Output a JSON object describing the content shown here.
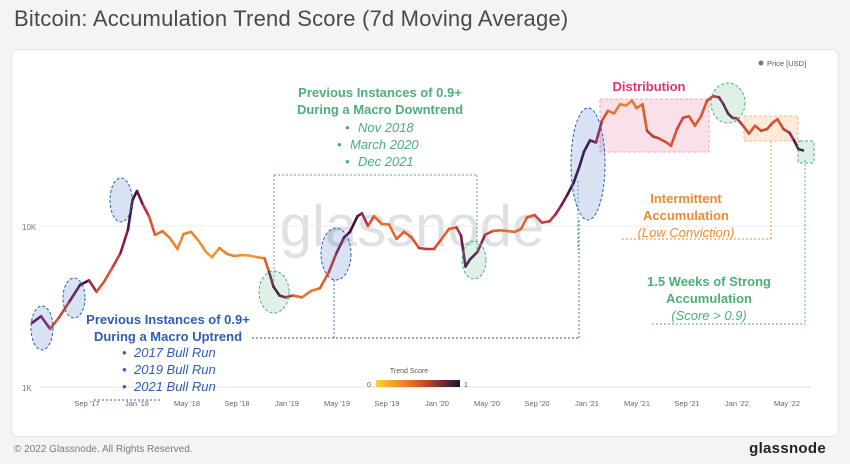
{
  "title": "Bitcoin: Accumulation Trend Score (7d Moving Average)",
  "footer": {
    "copyright": "© 2022 Glassnode. All Rights Reserved.",
    "brand": "glassnode"
  },
  "watermark": "glassnode",
  "legend": {
    "price_label": "Price [USD]",
    "scale_title": "Trend Score",
    "scale_min": "0",
    "scale_max": "1"
  },
  "colors": {
    "green": "#4caf79",
    "blue": "#2f5db6",
    "pink": "#e0366e",
    "orange": "#f08a32",
    "score_low": "#f7d23a",
    "score_mid": "#e05a2a",
    "score_high": "#1e0f3a"
  },
  "annotations": {
    "downtrend_heading": [
      "Previous Instances of 0.9+",
      "During a Macro Downtrend"
    ],
    "downtrend_items": [
      "Nov 2018",
      "March 2020",
      "Dec 2021"
    ],
    "uptrend_heading": [
      "Previous Instances of 0.9+",
      "During a Macro Uptrend"
    ],
    "uptrend_items": [
      "2017 Bull Run",
      "2019 Bull Run",
      "2021 Bull Run"
    ],
    "distribution": "Distribution",
    "intermittent": [
      "Intermittent",
      "Accumulation"
    ],
    "intermittent_sub": "(Low Conviction)",
    "strong": [
      "1.5 Weeks of Strong",
      "Accumulation"
    ],
    "strong_sub": "(Score > 0.9)"
  },
  "chart_data": {
    "type": "line",
    "title": "Bitcoin: Accumulation Trend Score (7d Moving Average)",
    "y_scale": "log",
    "y_ticks": [
      {
        "value": 1000,
        "label": "1K"
      },
      {
        "value": 10000,
        "label": "10K"
      }
    ],
    "x_ticks": [
      "Sep '17",
      "Jan '18",
      "May '18",
      "Sep '18",
      "Jan '19",
      "May '19",
      "Sep '19",
      "Jan '20",
      "May '20",
      "Sep '20",
      "Jan '21",
      "May '21",
      "Sep '21",
      "Jan '22",
      "May '22"
    ],
    "x_start": 2017.3,
    "x_end": 2022.5,
    "series": [
      {
        "name": "Price [USD]",
        "color_by": "Trend Score",
        "points": [
          [
            2017.3,
            2500,
            0.8
          ],
          [
            2017.36,
            2750,
            0.95
          ],
          [
            2017.42,
            2300,
            0.55
          ],
          [
            2017.48,
            2700,
            0.5
          ],
          [
            2017.55,
            3400,
            0.7
          ],
          [
            2017.62,
            4300,
            0.95
          ],
          [
            2017.68,
            4600,
            0.9
          ],
          [
            2017.73,
            3900,
            0.55
          ],
          [
            2017.78,
            4500,
            0.5
          ],
          [
            2017.84,
            5600,
            0.55
          ],
          [
            2017.89,
            6800,
            0.7
          ],
          [
            2017.94,
            9500,
            0.9
          ],
          [
            2017.97,
            14500,
            0.95
          ],
          [
            2018.0,
            16500,
            0.95
          ],
          [
            2018.04,
            13500,
            0.75
          ],
          [
            2018.08,
            11500,
            0.6
          ],
          [
            2018.12,
            8800,
            0.45
          ],
          [
            2018.17,
            9300,
            0.4
          ],
          [
            2018.22,
            8400,
            0.35
          ],
          [
            2018.27,
            7200,
            0.3
          ],
          [
            2018.31,
            8900,
            0.3
          ],
          [
            2018.36,
            9200,
            0.35
          ],
          [
            2018.41,
            8100,
            0.3
          ],
          [
            2018.46,
            6900,
            0.25
          ],
          [
            2018.5,
            6400,
            0.2
          ],
          [
            2018.55,
            7300,
            0.3
          ],
          [
            2018.6,
            6700,
            0.35
          ],
          [
            2018.65,
            6500,
            0.3
          ],
          [
            2018.7,
            6600,
            0.25
          ],
          [
            2018.75,
            6550,
            0.2
          ],
          [
            2018.8,
            6400,
            0.25
          ],
          [
            2018.85,
            6300,
            0.3
          ],
          [
            2018.88,
            5200,
            0.7
          ],
          [
            2018.91,
            4200,
            0.95
          ],
          [
            2018.95,
            3700,
            0.95
          ],
          [
            2018.99,
            3600,
            0.85
          ],
          [
            2019.04,
            3700,
            0.55
          ],
          [
            2019.1,
            3600,
            0.4
          ],
          [
            2019.16,
            3950,
            0.35
          ],
          [
            2019.22,
            4100,
            0.4
          ],
          [
            2019.28,
            5200,
            0.55
          ],
          [
            2019.33,
            6800,
            0.7
          ],
          [
            2019.38,
            8500,
            0.85
          ],
          [
            2019.42,
            9200,
            0.95
          ],
          [
            2019.47,
            11500,
            0.95
          ],
          [
            2019.5,
            12000,
            0.8
          ],
          [
            2019.54,
            10000,
            0.6
          ],
          [
            2019.58,
            11500,
            0.5
          ],
          [
            2019.63,
            10300,
            0.4
          ],
          [
            2019.68,
            10200,
            0.4
          ],
          [
            2019.73,
            8300,
            0.45
          ],
          [
            2019.78,
            9200,
            0.5
          ],
          [
            2019.83,
            8500,
            0.45
          ],
          [
            2019.88,
            7300,
            0.6
          ],
          [
            2019.93,
            7200,
            0.7
          ],
          [
            2019.98,
            7200,
            0.6
          ],
          [
            2020.03,
            8300,
            0.5
          ],
          [
            2020.08,
            9600,
            0.45
          ],
          [
            2020.13,
            9800,
            0.55
          ],
          [
            2020.16,
            8700,
            0.75
          ],
          [
            2020.19,
            5600,
            0.95
          ],
          [
            2020.22,
            6200,
            0.95
          ],
          [
            2020.27,
            6900,
            0.85
          ],
          [
            2020.32,
            8800,
            0.7
          ],
          [
            2020.37,
            9300,
            0.55
          ],
          [
            2020.42,
            9400,
            0.45
          ],
          [
            2020.47,
            9300,
            0.4
          ],
          [
            2020.52,
            9200,
            0.4
          ],
          [
            2020.56,
            9600,
            0.45
          ],
          [
            2020.6,
            11300,
            0.5
          ],
          [
            2020.65,
            11700,
            0.55
          ],
          [
            2020.7,
            10500,
            0.6
          ],
          [
            2020.75,
            10700,
            0.6
          ],
          [
            2020.79,
            11800,
            0.7
          ],
          [
            2020.83,
            13500,
            0.8
          ],
          [
            2020.87,
            15700,
            0.9
          ],
          [
            2020.91,
            18500,
            0.95
          ],
          [
            2020.95,
            23500,
            0.95
          ],
          [
            2020.98,
            29000,
            0.95
          ],
          [
            2021.02,
            34000,
            0.9
          ],
          [
            2021.06,
            33000,
            0.8
          ],
          [
            2021.1,
            45000,
            0.6
          ],
          [
            2021.14,
            52000,
            0.45
          ],
          [
            2021.18,
            50000,
            0.4
          ],
          [
            2021.22,
            57000,
            0.35
          ],
          [
            2021.26,
            56000,
            0.3
          ],
          [
            2021.3,
            60000,
            0.35
          ],
          [
            2021.33,
            54000,
            0.4
          ],
          [
            2021.37,
            57000,
            0.4
          ],
          [
            2021.4,
            39000,
            0.6
          ],
          [
            2021.44,
            36000,
            0.65
          ],
          [
            2021.48,
            35000,
            0.6
          ],
          [
            2021.53,
            33000,
            0.55
          ],
          [
            2021.56,
            31500,
            0.5
          ],
          [
            2021.6,
            40000,
            0.55
          ],
          [
            2021.64,
            47000,
            0.6
          ],
          [
            2021.68,
            48000,
            0.55
          ],
          [
            2021.72,
            42000,
            0.5
          ],
          [
            2021.76,
            48000,
            0.5
          ],
          [
            2021.8,
            60000,
            0.55
          ],
          [
            2021.84,
            64000,
            0.6
          ],
          [
            2021.88,
            63000,
            0.75
          ],
          [
            2021.91,
            57000,
            0.85
          ],
          [
            2021.94,
            50000,
            0.9
          ],
          [
            2021.97,
            47000,
            0.85
          ],
          [
            2022.0,
            46500,
            0.7
          ],
          [
            2022.04,
            42000,
            0.6
          ],
          [
            2022.08,
            37500,
            0.55
          ],
          [
            2022.12,
            42000,
            0.5
          ],
          [
            2022.16,
            39000,
            0.55
          ],
          [
            2022.2,
            40000,
            0.6
          ],
          [
            2022.24,
            44000,
            0.55
          ],
          [
            2022.27,
            46000,
            0.5
          ],
          [
            2022.31,
            40000,
            0.6
          ],
          [
            2022.35,
            38000,
            0.65
          ],
          [
            2022.38,
            34000,
            0.85
          ],
          [
            2022.41,
            30000,
            0.95
          ],
          [
            2022.44,
            29500,
            0.95
          ]
        ]
      }
    ]
  }
}
